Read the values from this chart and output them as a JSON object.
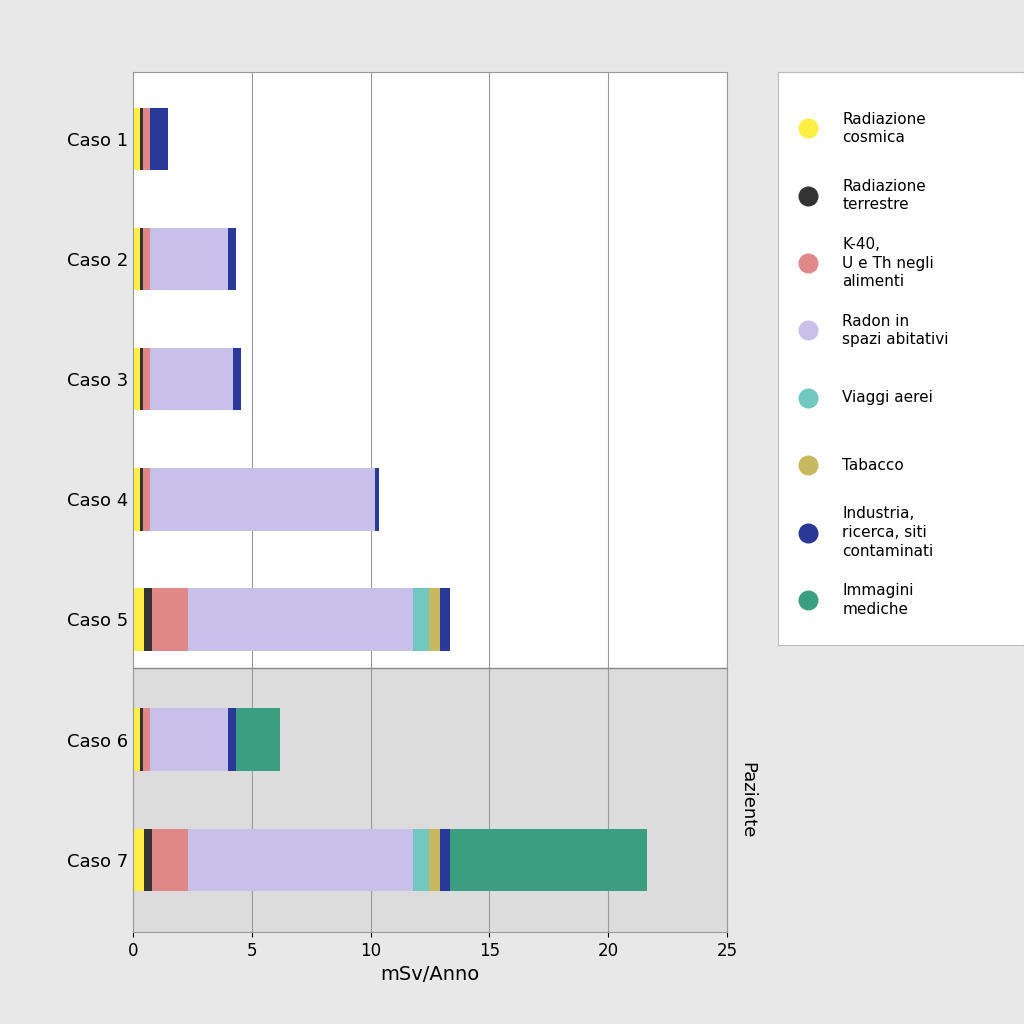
{
  "cases": [
    "Caso 1",
    "Caso 2",
    "Caso 3",
    "Caso 4",
    "Caso 5",
    "Caso 6",
    "Caso 7"
  ],
  "legend_labels": [
    "Radiazione\ncosmica",
    "Radiazione\nterrestre",
    "K-40,\nU e Th negli\nalimenti",
    "Radon in\nspazi abitativi",
    "Viaggi aerei",
    "Tabacco",
    "Industria,\nricerca, siti\ncontaminati",
    "Immagini\nmediche"
  ],
  "colors": [
    "#FFEE44",
    "#333333",
    "#E08888",
    "#C8C0EA",
    "#70C8C0",
    "#C8B860",
    "#2A3898",
    "#3B9E80"
  ],
  "values": [
    [
      0.3,
      0.12,
      0.28,
      0.0,
      0.0,
      0.0,
      0.75,
      0.0
    ],
    [
      0.3,
      0.12,
      0.28,
      3.3,
      0.0,
      0.0,
      0.35,
      0.0
    ],
    [
      0.3,
      0.12,
      0.28,
      3.5,
      0.0,
      0.0,
      0.35,
      0.0
    ],
    [
      0.3,
      0.12,
      0.28,
      9.5,
      0.0,
      0.0,
      0.15,
      0.0
    ],
    [
      0.45,
      0.35,
      1.5,
      9.5,
      0.65,
      0.45,
      0.45,
      0.0
    ],
    [
      0.3,
      0.12,
      0.28,
      3.3,
      0.0,
      0.0,
      0.35,
      1.85
    ],
    [
      0.45,
      0.35,
      1.5,
      9.5,
      0.65,
      0.45,
      0.45,
      8.3
    ]
  ],
  "background_figure": "#E8E8E8",
  "background_normal": "#FFFFFF",
  "background_patient": "#DCDCDC",
  "ylabel_right": "Paziente",
  "xlabel": "mSv/Anno",
  "xlim": [
    0,
    25
  ],
  "xticks": [
    0,
    5,
    10,
    15,
    20,
    25
  ],
  "label_fontsize": 13,
  "tick_fontsize": 12,
  "legend_fontsize": 11,
  "bar_height": 0.52
}
